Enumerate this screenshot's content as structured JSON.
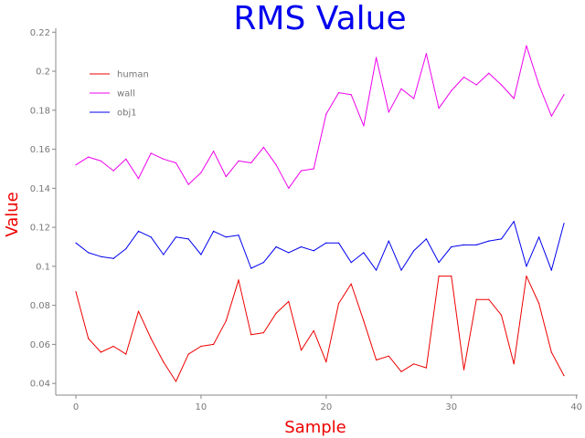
{
  "colors": {
    "title": "#0000ee",
    "axis_labels": "#ee0000",
    "axis_line": "#888888",
    "tick_text": "#777777",
    "background": "#ffffff"
  },
  "chart_data": {
    "type": "line",
    "title": "RMS Value",
    "xlabel": "Sample",
    "ylabel": "Value",
    "xlim": [
      -1,
      40
    ],
    "ylim": [
      0.034,
      0.222
    ],
    "xticks": [
      0,
      10,
      20,
      30,
      40
    ],
    "yticks": [
      0.04,
      0.06,
      0.08,
      0.1,
      0.12,
      0.14,
      0.16,
      0.18,
      0.2,
      0.22
    ],
    "ytick_labels": [
      "0.04",
      "0.06",
      "0.08",
      "0.1",
      "0.12",
      "0.14",
      "0.16",
      "0.18",
      "0.2",
      "0.22"
    ],
    "grid": false,
    "legend_position": "top-left",
    "x": [
      0,
      1,
      2,
      3,
      4,
      5,
      6,
      7,
      8,
      9,
      10,
      11,
      12,
      13,
      14,
      15,
      16,
      17,
      18,
      19,
      20,
      21,
      22,
      23,
      24,
      25,
      26,
      27,
      28,
      29,
      30,
      31,
      32,
      33,
      34,
      35,
      36,
      37,
      38,
      39
    ],
    "series": [
      {
        "name": "human",
        "color": "#ee0000",
        "values": [
          0.087,
          0.063,
          0.056,
          0.059,
          0.055,
          0.077,
          0.063,
          0.051,
          0.041,
          0.055,
          0.059,
          0.06,
          0.072,
          0.093,
          0.065,
          0.066,
          0.076,
          0.082,
          0.057,
          0.067,
          0.051,
          0.081,
          0.091,
          0.072,
          0.052,
          0.054,
          0.046,
          0.05,
          0.048,
          0.095,
          0.095,
          0.047,
          0.083,
          0.083,
          0.075,
          0.05,
          0.095,
          0.081,
          0.056,
          0.044
        ]
      },
      {
        "name": "wall",
        "color": "#ee00ee",
        "values": [
          0.152,
          0.156,
          0.154,
          0.149,
          0.155,
          0.145,
          0.158,
          0.155,
          0.153,
          0.142,
          0.148,
          0.159,
          0.146,
          0.154,
          0.153,
          0.161,
          0.152,
          0.14,
          0.149,
          0.15,
          0.178,
          0.189,
          0.188,
          0.172,
          0.207,
          0.179,
          0.191,
          0.186,
          0.209,
          0.181,
          0.19,
          0.197,
          0.193,
          0.199,
          0.193,
          0.186,
          0.213,
          0.193,
          0.177,
          0.188
        ]
      },
      {
        "name": "obj1",
        "color": "#0000ee",
        "values": [
          0.112,
          0.107,
          0.105,
          0.104,
          0.109,
          0.118,
          0.115,
          0.106,
          0.115,
          0.114,
          0.106,
          0.118,
          0.115,
          0.116,
          0.099,
          0.102,
          0.11,
          0.107,
          0.11,
          0.108,
          0.112,
          0.112,
          0.102,
          0.107,
          0.098,
          0.113,
          0.098,
          0.108,
          0.114,
          0.102,
          0.11,
          0.111,
          0.111,
          0.113,
          0.114,
          0.123,
          0.1,
          0.115,
          0.098,
          0.122
        ]
      }
    ]
  }
}
